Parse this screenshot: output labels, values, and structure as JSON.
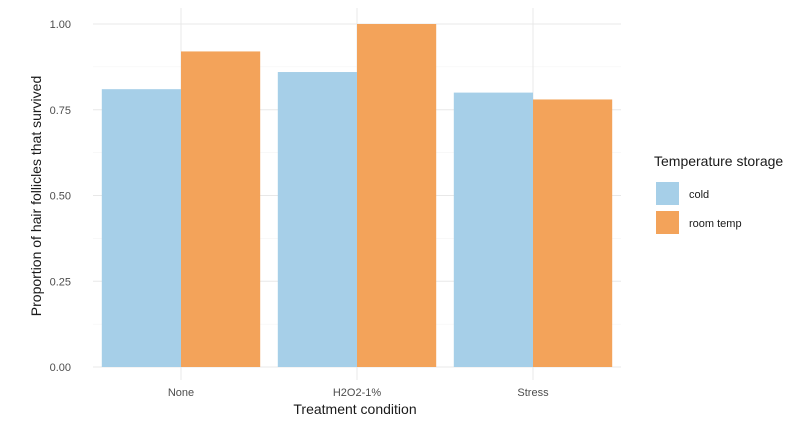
{
  "chart_data": {
    "type": "bar",
    "categories": [
      "None",
      "H2O2-1%",
      "Stress"
    ],
    "series": [
      {
        "name": "cold",
        "color": "#a6cfe8",
        "values": [
          0.81,
          0.86,
          0.8
        ]
      },
      {
        "name": "room temp",
        "color": "#f3a35a",
        "values": [
          0.92,
          1.0,
          0.78
        ]
      }
    ],
    "xlabel": "Treatment condition",
    "ylabel": "Proportion of hair follicles that survived",
    "ylim": [
      0,
      1.0
    ],
    "yticks": [
      "0.00",
      "0.25",
      "0.50",
      "0.75",
      "1.00"
    ],
    "ytick_values": [
      0,
      0.25,
      0.5,
      0.75,
      1.0
    ],
    "grid": true,
    "legend": {
      "title": "Temperature storage",
      "position": "right"
    }
  }
}
